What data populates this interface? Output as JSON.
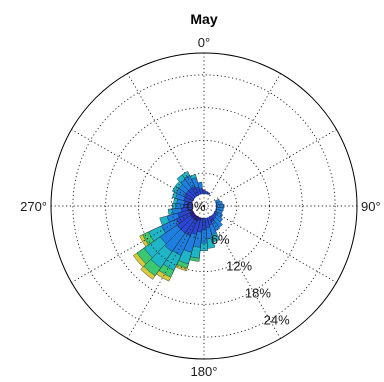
{
  "chart_data": {
    "type": "polar-bar",
    "title": "May",
    "direction_labels": [
      {
        "deg": 0,
        "text": "0°"
      },
      {
        "deg": 90,
        "text": "90°"
      },
      {
        "deg": 180,
        "text": "180°"
      },
      {
        "deg": 270,
        "text": "270°"
      }
    ],
    "radial_max": 28,
    "radial_rings": [
      {
        "value": 0,
        "label": "0%"
      },
      {
        "value": 6,
        "label": "6%"
      },
      {
        "value": 12,
        "label": "12%"
      },
      {
        "value": 18,
        "label": "18%"
      },
      {
        "value": 24,
        "label": "24%"
      }
    ],
    "grid": true,
    "sector_width_deg": 10,
    "bin_colors": [
      "#2b1e9e",
      "#2a46d6",
      "#1f7fe0",
      "#1fb4c6",
      "#3cc873",
      "#d6c93a",
      "#e8a020"
    ],
    "sectors": [
      {
        "dir": 0,
        "bins": [
          1.5,
          3.0
        ]
      },
      {
        "dir": 10,
        "bins": [
          1.3,
          2.7
        ]
      },
      {
        "dir": 20,
        "bins": [
          1.2,
          2.6
        ]
      },
      {
        "dir": 30,
        "bins": [
          1.1,
          2.2
        ]
      },
      {
        "dir": 40,
        "bins": [
          1.0,
          1.9
        ]
      },
      {
        "dir": 50,
        "bins": [
          1.0,
          2.0
        ]
      },
      {
        "dir": 60,
        "bins": [
          1.0,
          2.0
        ]
      },
      {
        "dir": 70,
        "bins": [
          1.1,
          2.2,
          3.0
        ]
      },
      {
        "dir": 80,
        "bins": [
          1.1,
          2.3,
          3.4
        ]
      },
      {
        "dir": 90,
        "bins": [
          1.2,
          2.4,
          3.7
        ]
      },
      {
        "dir": 100,
        "bins": [
          1.2,
          2.4,
          3.6
        ]
      },
      {
        "dir": 110,
        "bins": [
          1.2,
          2.4,
          3.5
        ]
      },
      {
        "dir": 120,
        "bins": [
          1.3,
          2.6,
          3.8
        ]
      },
      {
        "dir": 130,
        "bins": [
          1.4,
          2.8,
          4.2
        ]
      },
      {
        "dir": 140,
        "bins": [
          1.5,
          3.0,
          4.8
        ]
      },
      {
        "dir": 150,
        "bins": [
          1.6,
          3.2,
          5.0
        ]
      },
      {
        "dir": 160,
        "bins": [
          1.8,
          3.6,
          5.4,
          6.8
        ]
      },
      {
        "dir": 170,
        "bins": [
          2.0,
          4.0,
          6.0,
          7.8
        ]
      },
      {
        "dir": 180,
        "bins": [
          2.2,
          4.4,
          6.8,
          8.2
        ]
      },
      {
        "dir": 190,
        "bins": [
          2.4,
          4.8,
          7.6,
          9.6,
          10.2
        ]
      },
      {
        "dir": 200,
        "bins": [
          2.7,
          5.4,
          8.8,
          11.0,
          11.8,
          12.3
        ]
      },
      {
        "dir": 210,
        "bins": [
          3.0,
          6.0,
          10.0,
          13.0,
          14.4,
          15.2
        ]
      },
      {
        "dir": 220,
        "bins": [
          3.0,
          6.0,
          10.2,
          13.8,
          15.6,
          16.4
        ]
      },
      {
        "dir": 230,
        "bins": [
          3.0,
          6.0,
          9.8,
          13.4,
          15.0,
          15.8
        ]
      },
      {
        "dir": 240,
        "bins": [
          2.8,
          5.6,
          8.6,
          11.2,
          12.4,
          13.0
        ]
      },
      {
        "dir": 250,
        "bins": [
          2.5,
          5.0,
          7.0,
          8.4
        ]
      },
      {
        "dir": 260,
        "bins": [
          2.2,
          4.2,
          5.8,
          6.6
        ]
      },
      {
        "dir": 270,
        "bins": [
          2.0,
          3.8,
          5.2,
          5.8
        ]
      },
      {
        "dir": 280,
        "bins": [
          2.0,
          3.6,
          5.0,
          5.6
        ]
      },
      {
        "dir": 290,
        "bins": [
          2.0,
          3.8,
          5.4,
          6.0
        ]
      },
      {
        "dir": 300,
        "bins": [
          2.0,
          4.0,
          5.6,
          6.4
        ]
      },
      {
        "dir": 310,
        "bins": [
          2.0,
          4.0,
          5.6,
          6.4
        ]
      },
      {
        "dir": 320,
        "bins": [
          2.0,
          4.0,
          6.0,
          7.0
        ]
      },
      {
        "dir": 330,
        "bins": [
          2.0,
          4.0,
          6.2,
          7.0
        ]
      },
      {
        "dir": 340,
        "bins": [
          1.8,
          3.6,
          5.4,
          6.0
        ]
      },
      {
        "dir": 350,
        "bins": [
          1.6,
          3.2,
          4.4
        ]
      }
    ]
  }
}
